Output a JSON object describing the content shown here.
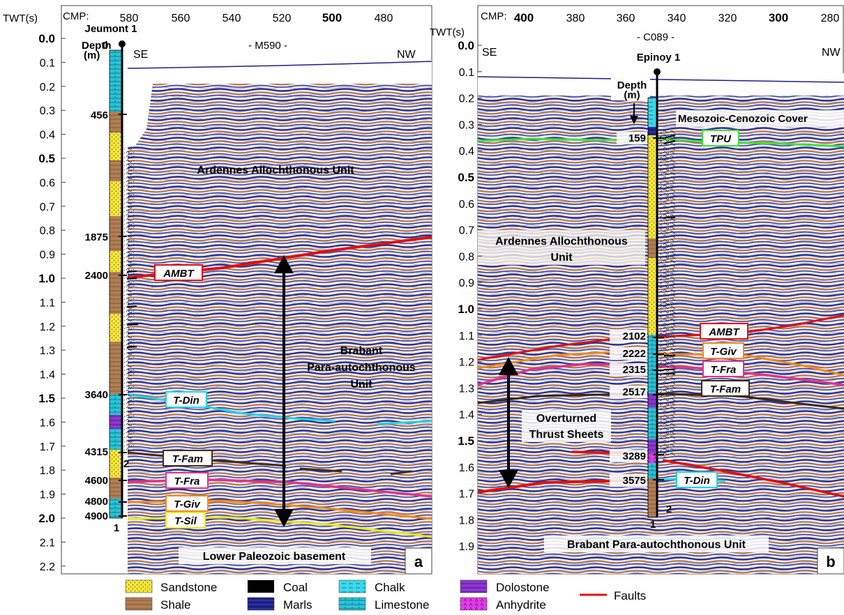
{
  "panel_a": {
    "twt_axis": {
      "label": "TWT(s)",
      "ticks": [
        "0.0",
        "0.1",
        "0.2",
        "0.3",
        "0.4",
        "0.5",
        "0.6",
        "0.7",
        "0.8",
        "0.9",
        "1.0",
        "1.1",
        "1.2",
        "1.3",
        "1.4",
        "1.5",
        "1.6",
        "1.7",
        "1.8",
        "1.9",
        "2.0",
        "2.1",
        "2.2"
      ],
      "bold_ticks": [
        "0.0",
        "0.5",
        "1.0",
        "1.5",
        "2.0"
      ]
    },
    "cmp_axis": {
      "label": "CMP:",
      "ticks": [
        "580",
        "560",
        "540",
        "520",
        "500",
        "480"
      ],
      "bold_ticks": [
        "500"
      ]
    },
    "line_name": "- M590 -",
    "well_name": "Jeumont 1",
    "depth_label_1": "Depth",
    "depth_label_2": "(m)",
    "depth_zero": "0",
    "direction_left": "SE",
    "direction_right": "NW",
    "depths": [
      "456",
      "1875",
      "2400",
      "3640",
      "4315",
      "4600",
      "4800",
      "4900"
    ],
    "column_numbers": [
      "1",
      "2"
    ],
    "units": [
      "Ardennes Allochthonous Unit",
      "Brabant",
      "Para-autochthonous",
      "Unit",
      "Lower Paleozoic basement"
    ],
    "horizons": [
      "AMBT",
      "T-Din",
      "T-Fam",
      "T-Fra",
      "T-Giv",
      "T-Sil"
    ],
    "panel_letter": "a"
  },
  "panel_b": {
    "twt_axis": {
      "label": "TWT(s)",
      "ticks": [
        "0.0",
        "0.1",
        "0.2",
        "0.3",
        "0.4",
        "0.5",
        "0.6",
        "0.7",
        "0.8",
        "0.9",
        "1.0",
        "1.1",
        "1.2",
        "1.3",
        "1.4",
        "1.5",
        "1.6",
        "1.7",
        "1.8",
        "1.9"
      ],
      "bold_ticks": [
        "0.0",
        "0.5",
        "1.0",
        "1.5"
      ]
    },
    "cmp_axis": {
      "label": "CMP:",
      "ticks": [
        "400",
        "380",
        "360",
        "340",
        "320",
        "300",
        "280"
      ],
      "bold_ticks": [
        "400",
        "300"
      ]
    },
    "line_name": "- C089 -",
    "well_name": "Epinoy 1",
    "depth_label_1": "Depth",
    "depth_label_2": "(m)",
    "direction_left": "SE",
    "direction_right": "NW",
    "depths": [
      "159",
      "2102",
      "2222",
      "2315",
      "2517",
      "3289",
      "3575"
    ],
    "column_numbers": [
      "1",
      "2"
    ],
    "units": [
      "Mesozoic-Cenozoic Cover",
      "Ardennes Allochthonous",
      "Unit",
      "Overturned",
      "Thrust Sheets",
      "Brabant Para-autochthonous Unit"
    ],
    "horizons": [
      "TPU",
      "AMBT",
      "T-Giv",
      "T-Fra",
      "T-Fam",
      "T-Din"
    ],
    "panel_letter": "b"
  },
  "legend": {
    "items": [
      "Sandstone",
      "Shale",
      "Coal",
      "Marls",
      "Chalk",
      "Limestone",
      "Dolostone",
      "Anhydrite",
      "Faults"
    ],
    "colors": {
      "sandstone": "#f5e63c",
      "shale": "#b07e55",
      "coal": "#000000",
      "marls": "#1a1f86",
      "chalk": "#29d4e6",
      "limestone": "#29c4d6",
      "dolostone": "#8a37d0",
      "anhydrite": "#e03ee8",
      "faults": "#e01010"
    }
  },
  "horizon_colors": {
    "AMBT": "#e01010",
    "T-Din": "#22d3e6",
    "T-Fam": "#4a2a12",
    "T-Fra": "#e0348c",
    "T-Giv": "#f08a1c",
    "T-Sil": "#e8e81c",
    "TPU": "#3ee03e"
  }
}
